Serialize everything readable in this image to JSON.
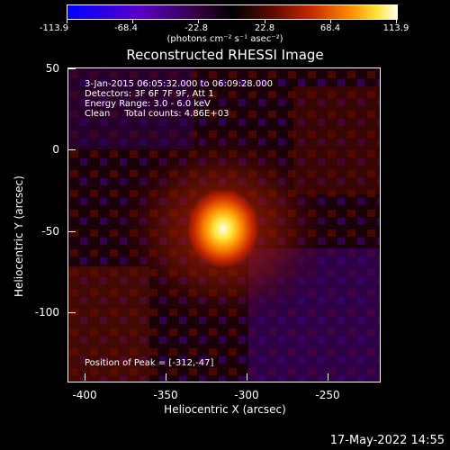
{
  "colorbar": {
    "ticks": [
      "-113.9",
      "-68.4",
      "-22.8",
      "22.8",
      "68.4",
      "113.9"
    ],
    "units": "(photons cm⁻² s⁻¹ asec⁻²)"
  },
  "title": "Reconstructed RHESSI Image",
  "annotations": {
    "time": "3-Jan-2015 06:05:32.000 to 06:09:28.000",
    "detectors": "Detectors: 3F 6F 7F 9F, Att 1",
    "energy": "Energy Range: 3.0 - 6.0 keV",
    "clean": "Clean     Total counts: 4.86E+03",
    "peak": "Position of Peak = [-312,-47]"
  },
  "axes": {
    "xlabel": "Heliocentric X (arcsec)",
    "ylabel": "Heliocentric Y (arcsec)",
    "xticks": [
      "-400",
      "-350",
      "-300",
      "-250"
    ],
    "yticks": [
      "50",
      "0",
      "-50",
      "-100"
    ]
  },
  "footer": {
    "date": "17-May-2022 14:55"
  },
  "colors": {
    "background": "#000000",
    "peak": "#ffffe6",
    "positive": "#c82800",
    "negative": "#5a00c8"
  }
}
